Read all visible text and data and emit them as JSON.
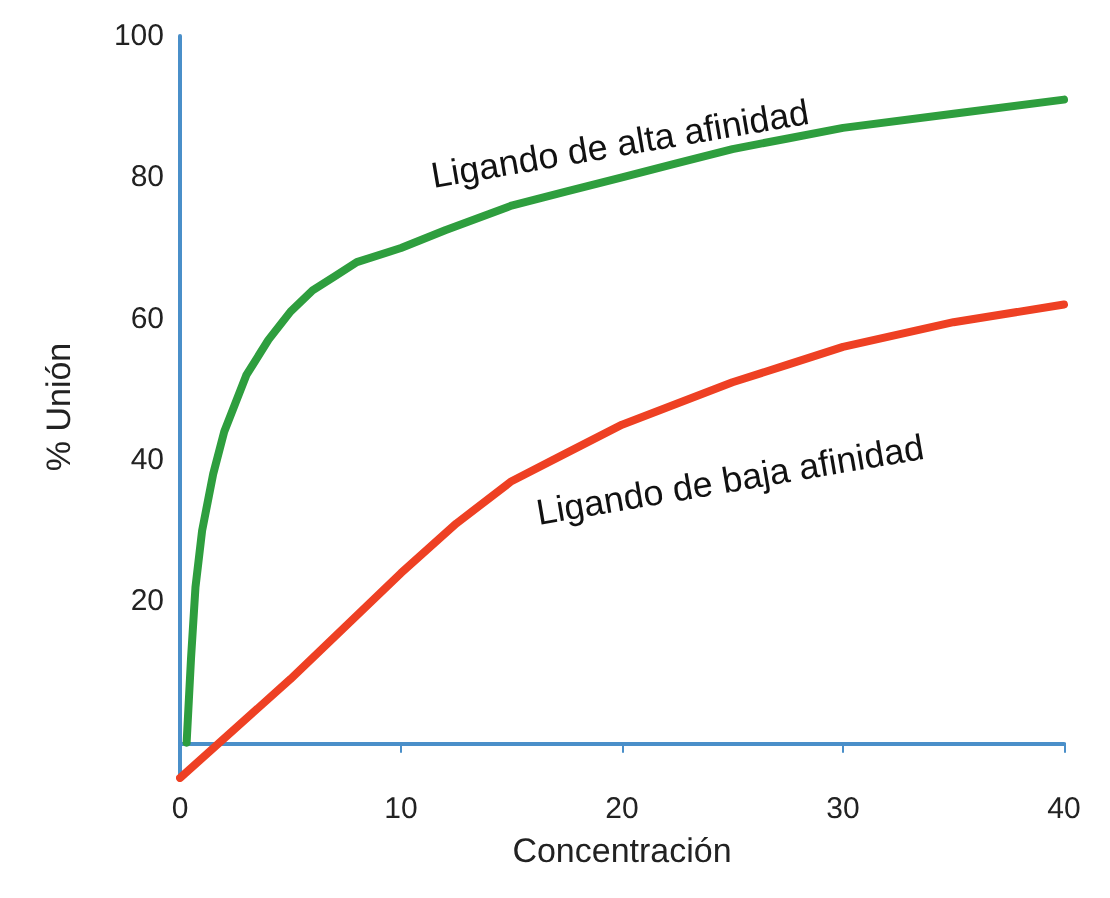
{
  "chart_data": {
    "type": "line",
    "xlabel": "Concentración",
    "ylabel": "% Unión",
    "xlim": [
      0,
      40
    ],
    "xticks": [
      0,
      10,
      20,
      30,
      40
    ],
    "ylim": [
      -5,
      100
    ],
    "yticks": [
      20,
      40,
      60,
      80,
      100
    ],
    "grid": false,
    "marker": "none",
    "line_style": "solid",
    "series": [
      {
        "color": "#2e9e3e",
        "x": [
          0.3,
          0.4,
          0.5,
          0.7,
          1,
          1.5,
          2,
          2.5,
          3,
          4,
          5,
          6,
          7,
          8,
          10,
          12,
          15,
          17.5,
          20,
          22.5,
          25,
          27.5,
          30,
          35,
          40
        ],
        "values": [
          0,
          6,
          12,
          22,
          30,
          38,
          44,
          48,
          52,
          57,
          61,
          64,
          66,
          68,
          70,
          72.5,
          76,
          78,
          80,
          82,
          84,
          85.5,
          87,
          89,
          91
        ]
      },
      {
        "color": "#ee4023",
        "x": [
          0,
          2.5,
          5,
          7.5,
          10,
          12.5,
          15,
          17.5,
          20,
          22.5,
          25,
          27.5,
          30,
          35,
          40
        ],
        "values": [
          -5,
          2,
          9,
          16.5,
          24,
          31,
          37,
          41,
          45,
          48,
          51,
          53.5,
          56,
          59.5,
          62
        ]
      }
    ],
    "annotations": [
      "Ligando de alta afinidad",
      "Ligando de baja afinidad"
    ]
  }
}
